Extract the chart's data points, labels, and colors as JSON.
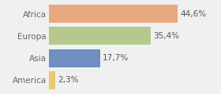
{
  "categories": [
    "Africa",
    "Europa",
    "Asia",
    "America"
  ],
  "values": [
    44.6,
    35.4,
    17.7,
    2.3
  ],
  "labels": [
    "44,6%",
    "35,4%",
    "17,7%",
    "2,3%"
  ],
  "bar_colors": [
    "#e8a97e",
    "#b5c98e",
    "#6e8fbf",
    "#e8c96e"
  ],
  "background_color": "#f0f0f0",
  "xlim": [
    0,
    58
  ],
  "label_fontsize": 7.5,
  "tick_fontsize": 7.5,
  "bar_height": 0.82
}
